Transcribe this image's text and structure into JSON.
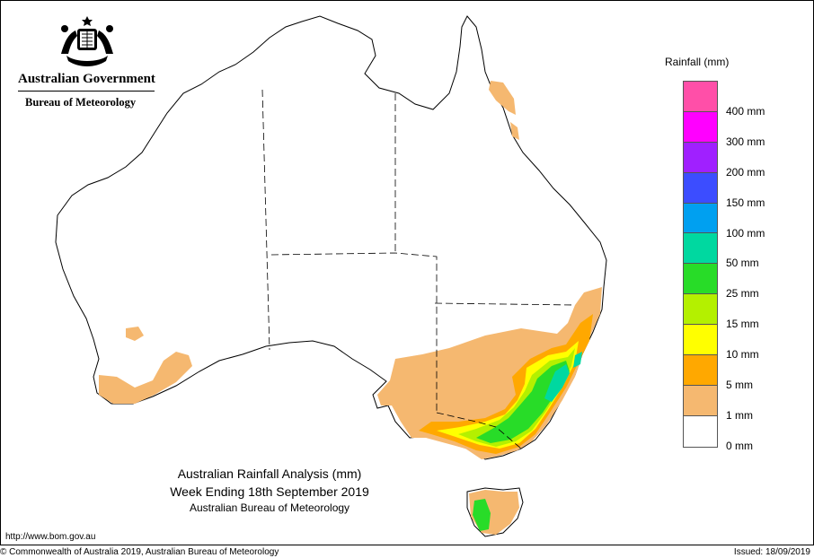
{
  "header": {
    "government": "Australian Government",
    "agency": "Bureau of Meteorology"
  },
  "legend": {
    "title": "Rainfall (mm)",
    "bins": [
      {
        "label": "400 mm",
        "color": "#ff4fa8"
      },
      {
        "label": "300 mm",
        "color": "#ff00ff"
      },
      {
        "label": "200 mm",
        "color": "#a020ff"
      },
      {
        "label": "150 mm",
        "color": "#3c4dff"
      },
      {
        "label": "100 mm",
        "color": "#00a0f0"
      },
      {
        "label": "50 mm",
        "color": "#00d8a0"
      },
      {
        "label": "25 mm",
        "color": "#28dc28"
      },
      {
        "label": "15 mm",
        "color": "#b4f000"
      },
      {
        "label": "10 mm",
        "color": "#ffff00"
      },
      {
        "label": "5 mm",
        "color": "#ffa800"
      },
      {
        "label": "1 mm",
        "color": "#f5b870"
      },
      {
        "label": "0 mm",
        "color": "#ffffff"
      }
    ]
  },
  "map": {
    "title_line1": "Australian Rainfall Analysis (mm)",
    "title_line2": "Week Ending 18th September 2019",
    "title_line3": "Australian Bureau of Meteorology",
    "land_color": "#ffffff",
    "outline_color": "#000000"
  },
  "footer": {
    "url": "http://www.bom.gov.au",
    "copyright": "© Commonwealth of Australia 2019, Australian Bureau of Meteorology",
    "issued": "Issued: 18/09/2019"
  }
}
